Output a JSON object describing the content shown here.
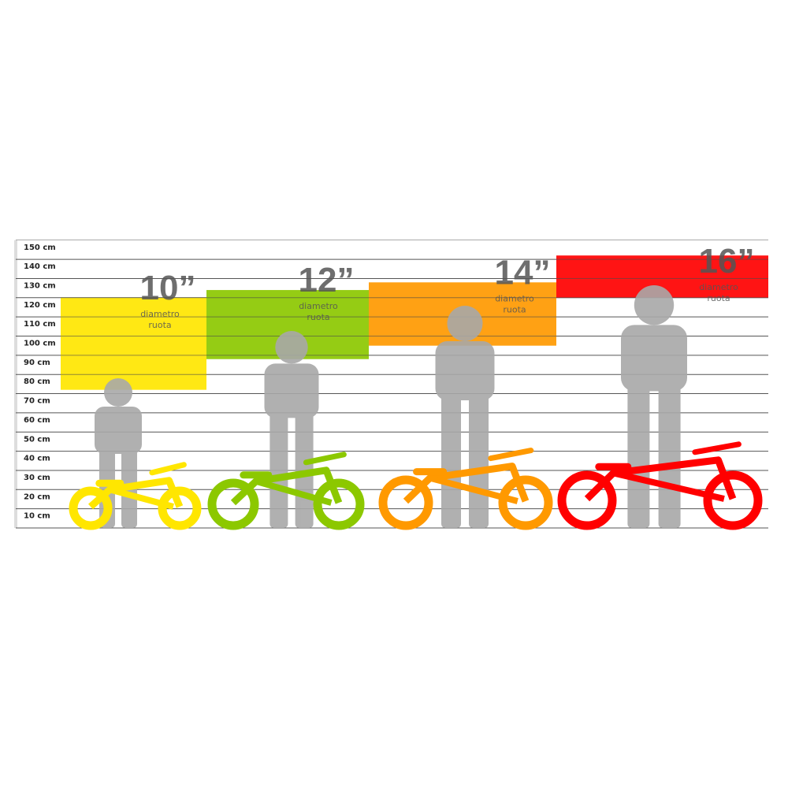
{
  "scale": {
    "unit": "cm",
    "ticks": [
      "150 cm",
      "140 cm",
      "130 cm",
      "120 cm",
      "110 cm",
      "100 cm",
      "90 cm",
      "80 cm",
      "70 cm",
      "60 cm",
      "50 cm",
      "40 cm",
      "30 cm",
      "20 cm",
      "10 cm"
    ]
  },
  "sizes": [
    {
      "label": "10”",
      "sub1": "diametro",
      "sub2": "ruota",
      "color": "#FFE600",
      "height_range_cm": [
        72,
        120
      ]
    },
    {
      "label": "12”",
      "sub1": "diametro",
      "sub2": "ruota",
      "color": "#8CC800",
      "height_range_cm": [
        88,
        124
      ]
    },
    {
      "label": "14”",
      "sub1": "diametro",
      "sub2": "ruota",
      "color": "#FF9900",
      "height_range_cm": [
        95,
        128
      ]
    },
    {
      "label": "16”",
      "sub1": "diametro",
      "sub2": "ruota",
      "color": "#FF0000",
      "height_range_cm": [
        120,
        142
      ]
    }
  ],
  "colors": {
    "silhouette": "#A8A8A8",
    "gridline": "#555555"
  }
}
